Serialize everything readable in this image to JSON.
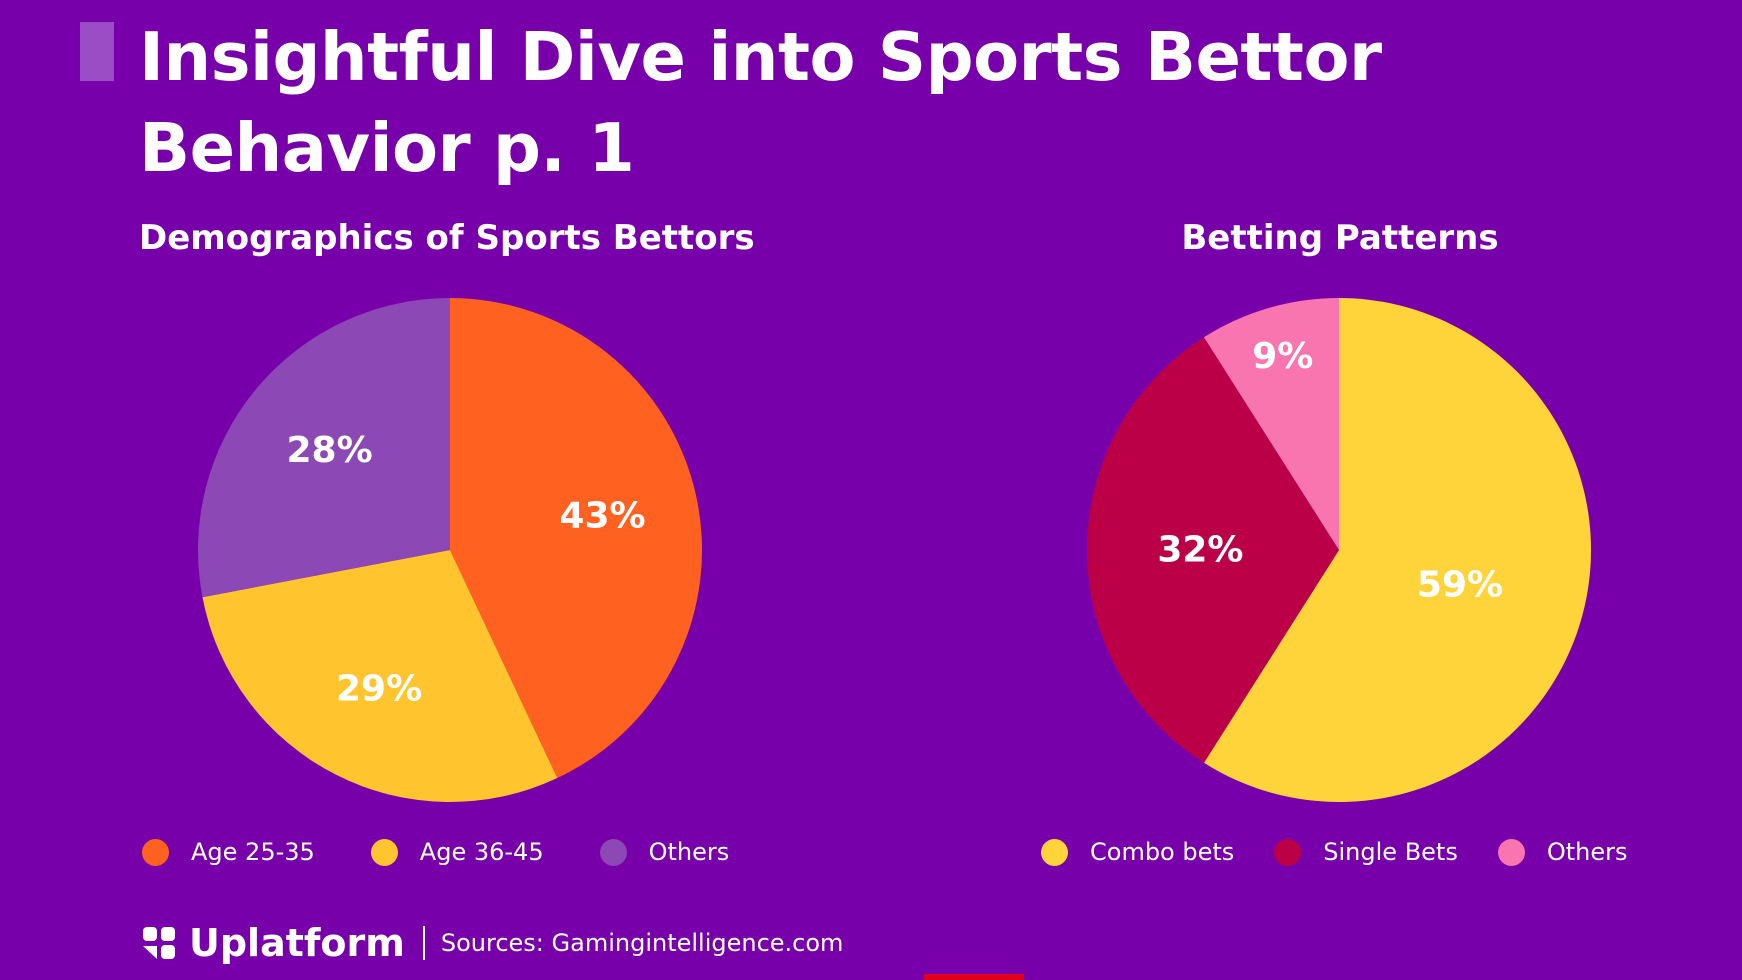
{
  "title": {
    "line1": "Insightful Dive into Sports Bettor",
    "line2": "Behavior p. 1"
  },
  "chart_data": [
    {
      "type": "pie",
      "title": "Demographics of Sports Bettors",
      "labels": [
        "Age 25-35",
        "Age 36-45",
        "Others"
      ],
      "values": [
        43,
        29,
        28
      ],
      "value_labels": [
        "43%",
        "29%",
        "28%"
      ],
      "colors": [
        "#FF6120",
        "#FFC42E",
        "#8C48B4"
      ],
      "legend_position": "bottom"
    },
    {
      "type": "pie",
      "title": "Betting Patterns",
      "labels": [
        "Combo bets",
        "Single Bets",
        "Others"
      ],
      "values": [
        59,
        32,
        9
      ],
      "value_labels": [
        "59%",
        "32%",
        "9%"
      ],
      "colors": [
        "#FFD43B",
        "#BB0048",
        "#F875B0"
      ],
      "legend_position": "bottom"
    }
  ],
  "footer": {
    "brand": "Uplatform",
    "sources": "Sources: Gamingintelligence.com",
    "logo_icon": "uplatform-logo-icon"
  },
  "colors": {
    "background": "#7800AA",
    "accent_bar": "#9A4DC4",
    "red_mark": "#E0001B"
  }
}
